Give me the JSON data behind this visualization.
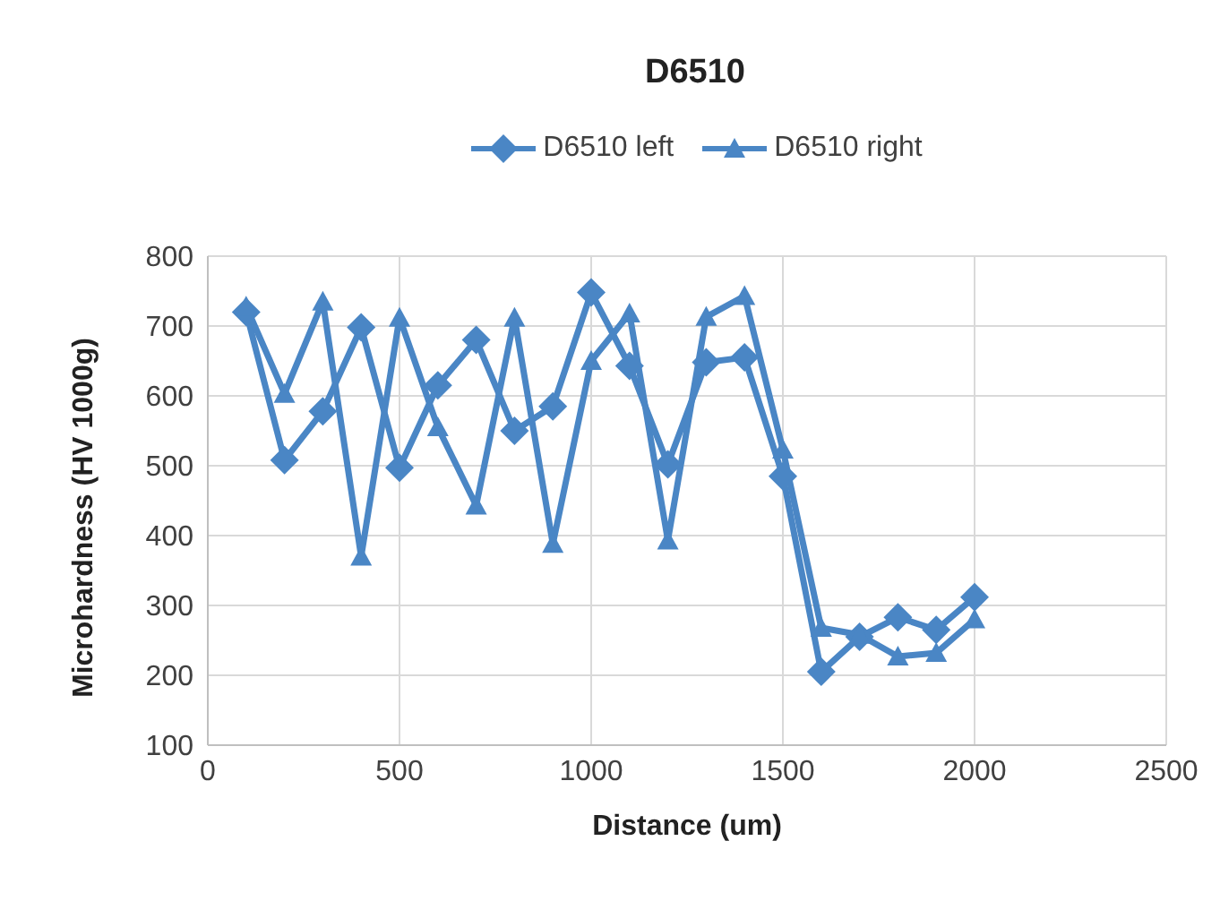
{
  "chart_data": {
    "type": "line",
    "title": "D6510",
    "xlabel": "Distance (um)",
    "ylabel": "Microhardness (HV 1000g)",
    "x": [
      100,
      200,
      300,
      400,
      500,
      600,
      700,
      800,
      900,
      1000,
      1100,
      1200,
      1300,
      1400,
      1500,
      1600,
      1700,
      1800,
      1900,
      2000
    ],
    "series": [
      {
        "name": "D6510 left",
        "color": "#4a86c5",
        "marker": "diamond",
        "values": [
          720,
          508,
          578,
          698,
          497,
          615,
          680,
          550,
          585,
          748,
          643,
          502,
          648,
          655,
          485,
          205,
          255,
          283,
          265,
          312
        ]
      },
      {
        "name": "D6510 right",
        "color": "#4a86c5",
        "marker": "triangle",
        "values": [
          728,
          603,
          735,
          370,
          712,
          555,
          443,
          712,
          388,
          650,
          718,
          393,
          713,
          743,
          523,
          268,
          258,
          227,
          232,
          280
        ]
      }
    ],
    "xlim": [
      0,
      2500
    ],
    "xticks": [
      0,
      500,
      1000,
      1500,
      2000,
      2500
    ],
    "ylim": [
      100,
      800
    ],
    "yticks": [
      100,
      200,
      300,
      400,
      500,
      600,
      700,
      800
    ],
    "grid": true,
    "legend": "top"
  }
}
